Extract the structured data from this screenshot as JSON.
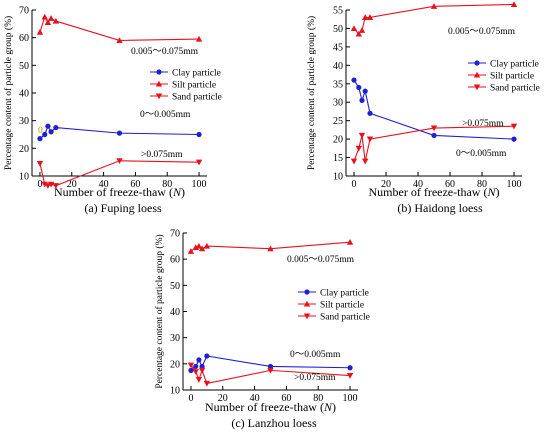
{
  "figure": {
    "colors": {
      "clay": "#1f1fd6",
      "silt": "#e8121d",
      "sand": "#e8121d",
      "axis": "#000000"
    }
  },
  "chart_data": [
    {
      "type": "line",
      "caption": "(a) Fuping loess",
      "xlabel": "Number of freeze-thaw (N)",
      "ylabel": "Percentage content of particle group (%)",
      "xlim": [
        -5,
        105
      ],
      "ylim": [
        10,
        70
      ],
      "xticks": [
        "0",
        "20",
        "40",
        "60",
        "80",
        "100"
      ],
      "yticks": [
        "10",
        "20",
        "30",
        "40",
        "50",
        "60",
        "70"
      ],
      "legend_position": "right",
      "series": [
        {
          "name": "Clay particle",
          "marker": "circle",
          "color": "#1f1fd6",
          "x": [
            0,
            3,
            5,
            7,
            10,
            50,
            100
          ],
          "y": [
            23.5,
            25,
            28,
            26,
            27.5,
            25.5,
            25
          ]
        },
        {
          "name": "Silt particle",
          "marker": "triangle-up",
          "color": "#e8121d",
          "x": [
            0,
            3,
            5,
            7,
            10,
            50,
            100
          ],
          "y": [
            62,
            67.5,
            65.5,
            67,
            66,
            59,
            59.5
          ]
        },
        {
          "name": "Sand particle",
          "marker": "triangle-down",
          "color": "#e8121d",
          "x": [
            0,
            3,
            5,
            7,
            10,
            50,
            100
          ],
          "y": [
            14.5,
            7,
            6.5,
            7,
            6.5,
            15.5,
            15
          ]
        }
      ],
      "annotations": [
        "0.005～0.075mm",
        "0～0.005mm",
        ">0.075mm",
        "0"
      ]
    },
    {
      "type": "line",
      "caption": "(b) Haidong loess",
      "xlabel": "Number of freeze-thaw (N)",
      "ylabel": "Percentage content of particle group (%)",
      "xlim": [
        -5,
        105
      ],
      "ylim": [
        10,
        55
      ],
      "xticks": [
        "0",
        "20",
        "40",
        "60",
        "80",
        "100"
      ],
      "yticks": [
        "10",
        "15",
        "20",
        "25",
        "30",
        "35",
        "40",
        "45",
        "50",
        "55"
      ],
      "legend_position": "right",
      "series": [
        {
          "name": "Clay particle",
          "marker": "circle",
          "color": "#1f1fd6",
          "x": [
            0,
            3,
            5,
            7,
            10,
            50,
            100
          ],
          "y": [
            36,
            34,
            30.5,
            33,
            27,
            21,
            20
          ]
        },
        {
          "name": "Silt particle",
          "marker": "triangle-up",
          "color": "#e8121d",
          "x": [
            0,
            3,
            5,
            7,
            10,
            50,
            100
          ],
          "y": [
            50,
            48.5,
            49.5,
            53,
            53,
            56,
            56.5
          ]
        },
        {
          "name": "Sand particle",
          "marker": "triangle-down",
          "color": "#e8121d",
          "x": [
            0,
            3,
            5,
            7,
            10,
            50,
            100
          ],
          "y": [
            14,
            17.5,
            21,
            14,
            20,
            23,
            23.5
          ]
        }
      ],
      "annotations": [
        "0.005～0.075mm",
        ">0.075mm",
        "0～0.005mm"
      ]
    },
    {
      "type": "line",
      "caption": "(c) Lanzhou loess",
      "xlabel": "Number of freeze-thaw (N)",
      "ylabel": "Percentage content of particle group (%)",
      "xlim": [
        -5,
        105
      ],
      "ylim": [
        10,
        70
      ],
      "xticks": [
        "0",
        "20",
        "40",
        "60",
        "80",
        "100"
      ],
      "yticks": [
        "10",
        "20",
        "30",
        "40",
        "50",
        "60",
        "70"
      ],
      "legend_position": "right",
      "series": [
        {
          "name": "Clay particle",
          "marker": "circle",
          "color": "#1f1fd6",
          "x": [
            0,
            3,
            5,
            7,
            10,
            50,
            100
          ],
          "y": [
            17.5,
            19,
            21.5,
            19,
            23,
            19,
            18.5
          ]
        },
        {
          "name": "Silt particle",
          "marker": "triangle-up",
          "color": "#e8121d",
          "x": [
            0,
            3,
            5,
            7,
            10,
            50,
            100
          ],
          "y": [
            63,
            64.5,
            65,
            64,
            65,
            64,
            66.5
          ]
        },
        {
          "name": "Sand particle",
          "marker": "triangle-down",
          "color": "#e8121d",
          "x": [
            0,
            3,
            5,
            7,
            10,
            50,
            100
          ],
          "y": [
            19.5,
            17,
            14,
            17.5,
            12.5,
            17.5,
            15.5
          ]
        }
      ],
      "annotations": [
        "0.005～0.075mm",
        "0～0.005mm",
        ">0.075mm"
      ]
    }
  ]
}
